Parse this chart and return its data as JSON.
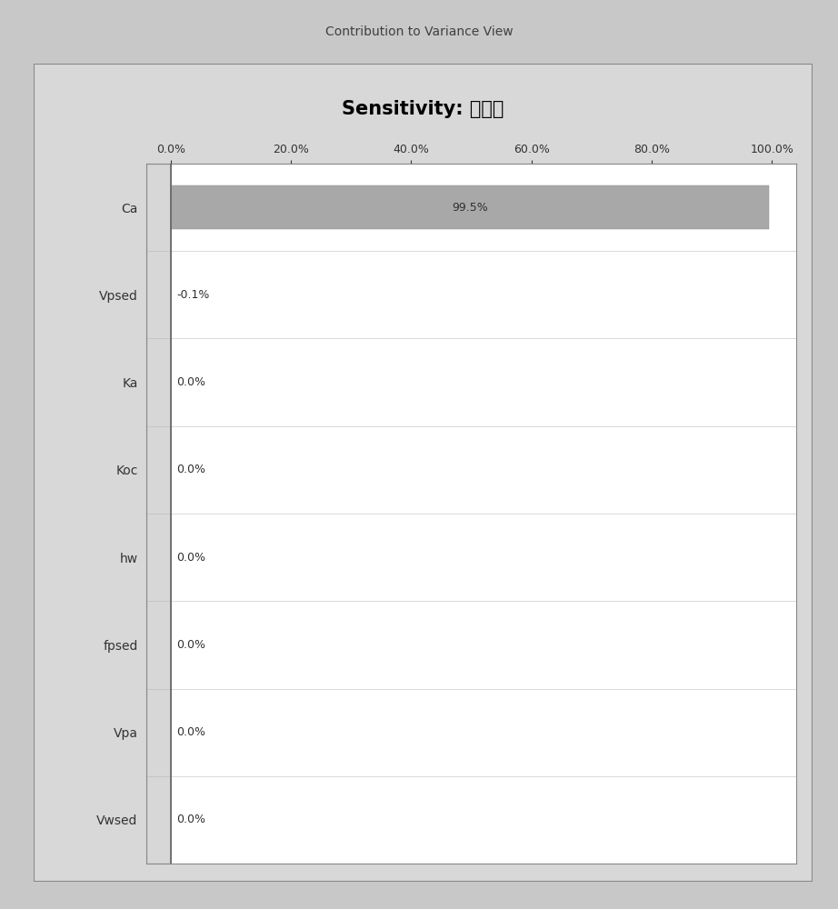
{
  "figure_title": "Contribution to Variance View",
  "chart_title": "Sensitivity: 空气相",
  "categories": [
    "Ca",
    "Vpsed",
    "Ka",
    "Koc",
    "hw",
    "fpsed",
    "Vpa",
    "Vwsed"
  ],
  "values": [
    99.5,
    -0.1,
    0.0,
    0.0,
    0.0,
    0.0,
    0.0,
    0.0
  ],
  "labels": [
    "99.5%",
    "-0.1%",
    "0.0%",
    "0.0%",
    "0.0%",
    "0.0%",
    "0.0%",
    "0.0%"
  ],
  "bar_color": "#a8a8a8",
  "zero_line_color": "#606060",
  "xlim": [
    -4,
    104
  ],
  "xticks": [
    0,
    20,
    40,
    60,
    80,
    100
  ],
  "xticklabels": [
    "0.0%",
    "20.0%",
    "40.0%",
    "60.0%",
    "80.0%",
    "100.0%"
  ],
  "figure_bg_color": "#c8c8c8",
  "outer_panel_color": "#d8d8d8",
  "inner_panel_color": "#ffffff",
  "title_fontsize": 10,
  "chart_title_fontsize": 15,
  "tick_fontsize": 9,
  "label_fontsize": 9,
  "ylabel_fontsize": 10,
  "left_stripe_color": "#b0b0b0"
}
